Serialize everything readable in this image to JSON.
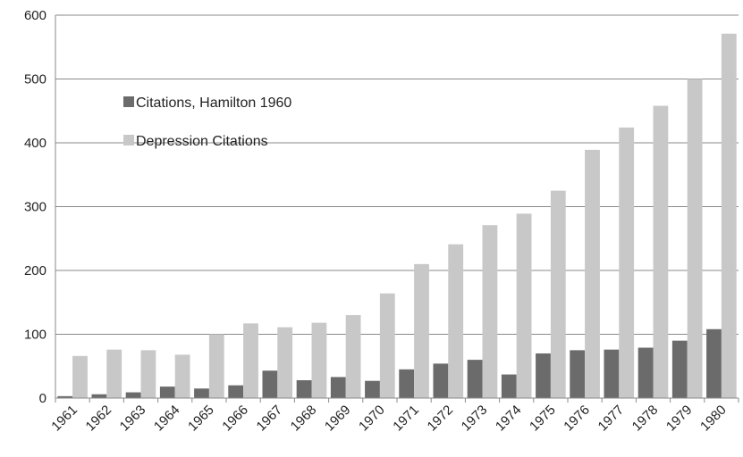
{
  "chart_data": {
    "type": "bar",
    "title": "",
    "xlabel": "",
    "ylabel": "",
    "categories": [
      "1961",
      "1962",
      "1963",
      "1964",
      "1965",
      "1966",
      "1967",
      "1968",
      "1969",
      "1970",
      "1971",
      "1972",
      "1973",
      "1974",
      "1975",
      "1976",
      "1977",
      "1978",
      "1979",
      "1980"
    ],
    "series": [
      {
        "name": "Citations, Hamilton 1960",
        "color": "#6b6b6b",
        "values": [
          3,
          6,
          9,
          18,
          15,
          20,
          43,
          28,
          33,
          27,
          45,
          54,
          60,
          37,
          70,
          75,
          76,
          79,
          90,
          108
        ]
      },
      {
        "name": "Depression Citations",
        "color": "#c8c8c8",
        "values": [
          66,
          76,
          75,
          68,
          100,
          117,
          111,
          118,
          130,
          164,
          210,
          241,
          271,
          289,
          325,
          389,
          424,
          458,
          500,
          571
        ]
      }
    ],
    "ylim": [
      0,
      600
    ],
    "yticks": [
      "0",
      "100",
      "200",
      "300",
      "400",
      "500",
      "600"
    ],
    "ytick_values": [
      0,
      100,
      200,
      300,
      400,
      500,
      600
    ],
    "grid": true,
    "legend_position": "upper-left-inside"
  }
}
